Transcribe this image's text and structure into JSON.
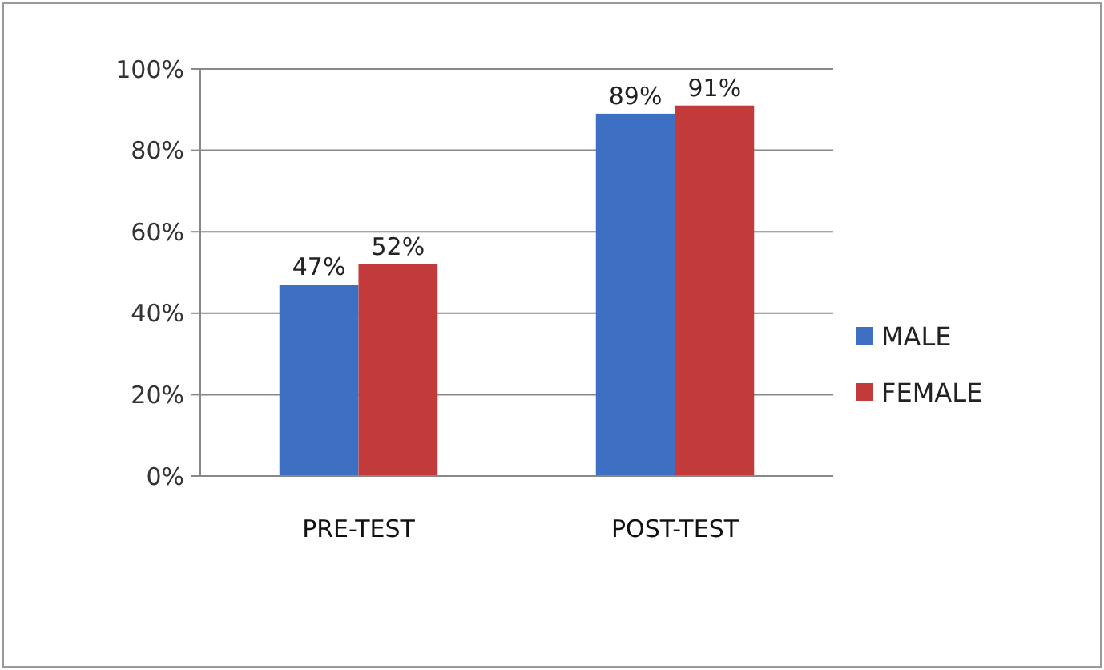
{
  "chart_data": {
    "type": "bar",
    "categories": [
      "PRE-TEST",
      "POST-TEST"
    ],
    "series": [
      {
        "name": "MALE",
        "color": "#3d6fc2",
        "values": [
          47,
          89
        ],
        "value_labels": [
          "47%",
          "89%"
        ]
      },
      {
        "name": "FEMALE",
        "color": "#c23b3a",
        "values": [
          52,
          91
        ],
        "value_labels": [
          "52%",
          "91%"
        ]
      }
    ],
    "ylim": [
      0,
      100
    ],
    "yticks": [
      {
        "value": 0,
        "label": "0%"
      },
      {
        "value": 20,
        "label": "20%"
      },
      {
        "value": 40,
        "label": "40%"
      },
      {
        "value": 60,
        "label": "60%"
      },
      {
        "value": 80,
        "label": "80%"
      },
      {
        "value": 100,
        "label": "100%"
      }
    ],
    "grid": "y",
    "legend": "right"
  }
}
